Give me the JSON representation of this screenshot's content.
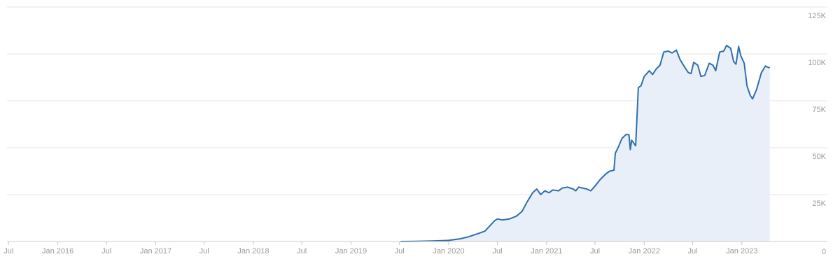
{
  "chart_data": {
    "type": "area",
    "title": "",
    "xlabel": "",
    "ylabel": "",
    "ylim": [
      0,
      125000
    ],
    "xlim": [
      "2015-06-25",
      "2023-08-25"
    ],
    "grid": true,
    "legend": "none",
    "y_axis_side": "right",
    "colors": {
      "line": "#2f6fad",
      "fill": "#e9eff8",
      "grid": "#e6e6e6",
      "label": "#9a9a9a"
    },
    "x_ticks": [
      {
        "date": "2015-07-01",
        "label": "Jul"
      },
      {
        "date": "2016-01-01",
        "label": "Jan 2016"
      },
      {
        "date": "2016-07-01",
        "label": "Jul"
      },
      {
        "date": "2017-01-01",
        "label": "Jan 2017"
      },
      {
        "date": "2017-07-01",
        "label": "Jul"
      },
      {
        "date": "2018-01-01",
        "label": "Jan 2018"
      },
      {
        "date": "2018-07-01",
        "label": "Jul"
      },
      {
        "date": "2019-01-01",
        "label": "Jan 2019"
      },
      {
        "date": "2019-07-01",
        "label": "Jul"
      },
      {
        "date": "2020-01-01",
        "label": "Jan 2020"
      },
      {
        "date": "2020-07-01",
        "label": "Jul"
      },
      {
        "date": "2021-01-01",
        "label": "Jan 2021"
      },
      {
        "date": "2021-07-01",
        "label": "Jul"
      },
      {
        "date": "2022-01-01",
        "label": "Jan 2022"
      },
      {
        "date": "2022-07-01",
        "label": "Jul"
      },
      {
        "date": "2023-01-01",
        "label": "Jan 2023"
      }
    ],
    "y_ticks": [
      {
        "value": 0,
        "label": "0"
      },
      {
        "value": 25000,
        "label": "25K"
      },
      {
        "value": 50000,
        "label": "50K"
      },
      {
        "value": 75000,
        "label": "75K"
      },
      {
        "value": 100000,
        "label": "100K"
      },
      {
        "value": 125000,
        "label": "125K"
      }
    ],
    "series": [
      {
        "data": [
          [
            "2019-07-05",
            0
          ],
          [
            "2019-09-01",
            100
          ],
          [
            "2019-11-01",
            250
          ],
          [
            "2020-01-01",
            600
          ],
          [
            "2020-02-15",
            1500
          ],
          [
            "2020-03-15",
            2500
          ],
          [
            "2020-04-15",
            4000
          ],
          [
            "2020-05-15",
            5500
          ],
          [
            "2020-06-01",
            8000
          ],
          [
            "2020-06-20",
            11000
          ],
          [
            "2020-07-01",
            12000
          ],
          [
            "2020-07-20",
            11500
          ],
          [
            "2020-08-15",
            12000
          ],
          [
            "2020-09-10",
            13500
          ],
          [
            "2020-10-01",
            16000
          ],
          [
            "2020-10-20",
            21000
          ],
          [
            "2020-11-10",
            26000
          ],
          [
            "2020-11-25",
            28000
          ],
          [
            "2020-12-10",
            25000
          ],
          [
            "2020-12-25",
            27000
          ],
          [
            "2021-01-10",
            26000
          ],
          [
            "2021-01-25",
            27500
          ],
          [
            "2021-02-15",
            27000
          ],
          [
            "2021-03-01",
            28500
          ],
          [
            "2021-03-20",
            29000
          ],
          [
            "2021-04-10",
            28000
          ],
          [
            "2021-04-20",
            27000
          ],
          [
            "2021-05-01",
            29000
          ],
          [
            "2021-05-15",
            28500
          ],
          [
            "2021-06-01",
            28000
          ],
          [
            "2021-06-15",
            27000
          ],
          [
            "2021-07-01",
            29500
          ],
          [
            "2021-07-20",
            33000
          ],
          [
            "2021-08-10",
            36000
          ],
          [
            "2021-08-25",
            37500
          ],
          [
            "2021-09-10",
            38000
          ],
          [
            "2021-09-15",
            47000
          ],
          [
            "2021-09-25",
            50000
          ],
          [
            "2021-10-10",
            55000
          ],
          [
            "2021-10-25",
            57000
          ],
          [
            "2021-11-05",
            57000
          ],
          [
            "2021-11-10",
            49000
          ],
          [
            "2021-11-15",
            54000
          ],
          [
            "2021-11-25",
            52000
          ],
          [
            "2021-11-30",
            51000
          ],
          [
            "2021-12-10",
            82000
          ],
          [
            "2021-12-20",
            83000
          ],
          [
            "2022-01-01",
            88000
          ],
          [
            "2022-01-20",
            91000
          ],
          [
            "2022-02-01",
            89000
          ],
          [
            "2022-02-15",
            92000
          ],
          [
            "2022-03-01",
            94000
          ],
          [
            "2022-03-15",
            101000
          ],
          [
            "2022-04-01",
            101500
          ],
          [
            "2022-04-15",
            100500
          ],
          [
            "2022-05-01",
            102000
          ],
          [
            "2022-05-15",
            97000
          ],
          [
            "2022-06-01",
            93000
          ],
          [
            "2022-06-15",
            90000
          ],
          [
            "2022-06-25",
            89500
          ],
          [
            "2022-07-05",
            95500
          ],
          [
            "2022-07-20",
            94000
          ],
          [
            "2022-08-01",
            88000
          ],
          [
            "2022-08-15",
            88500
          ],
          [
            "2022-09-01",
            95000
          ],
          [
            "2022-09-15",
            94000
          ],
          [
            "2022-09-25",
            91000
          ],
          [
            "2022-10-10",
            101000
          ],
          [
            "2022-10-25",
            101500
          ],
          [
            "2022-11-05",
            104500
          ],
          [
            "2022-11-20",
            103000
          ],
          [
            "2022-12-01",
            96000
          ],
          [
            "2022-12-10",
            94500
          ],
          [
            "2022-12-20",
            104000
          ],
          [
            "2022-12-28",
            99000
          ],
          [
            "2023-01-10",
            95000
          ],
          [
            "2023-01-20",
            83000
          ],
          [
            "2023-02-01",
            78000
          ],
          [
            "2023-02-10",
            76000
          ],
          [
            "2023-02-25",
            81000
          ],
          [
            "2023-03-15",
            90000
          ],
          [
            "2023-03-30",
            93500
          ],
          [
            "2023-04-15",
            92500
          ]
        ]
      }
    ]
  }
}
